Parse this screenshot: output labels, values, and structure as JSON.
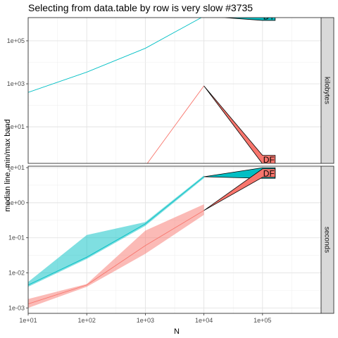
{
  "chart_data": {
    "type": "line",
    "title": "Selecting from data.table by row is very slow #3735",
    "xlabel": "N",
    "ylabel": "median line, min/max band",
    "x_scale": "log10",
    "x_ticks": [
      10,
      100,
      1000,
      10000,
      100000
    ],
    "x_tick_labels": [
      "1e+01",
      "1e+02",
      "1e+03",
      "1e+04",
      "1e+05"
    ],
    "x_range": [
      10,
      1000000
    ],
    "colors": {
      "DT": "#00BFC4",
      "DF": "#F8766D"
    },
    "panels": [
      {
        "strip": "kilobytes",
        "y_scale": "log10",
        "y_ticks": [
          10,
          1000,
          100000
        ],
        "y_tick_labels": [
          "1e+01",
          "1e+03",
          "1e+05"
        ],
        "y_range": [
          0.2,
          1200000
        ],
        "series": [
          {
            "name": "DT",
            "x": [
              10,
              100,
              1000,
              10000,
              100000
            ],
            "median": [
              400,
              3500,
              45000,
              1400000,
              1400000
            ],
            "min": [
              400,
              3500,
              45000,
              1400000,
              700000
            ],
            "max": [
              400,
              3500,
              45000,
              1400000,
              1700000
            ]
          },
          {
            "name": "DF",
            "x": [
              1000,
              10000,
              100000
            ],
            "median": [
              0.15,
              800,
              0.3
            ],
            "min": [
              0.15,
              800,
              0.2
            ],
            "max": [
              0.15,
              800,
              0.4
            ]
          }
        ]
      },
      {
        "strip": "seconds",
        "y_scale": "log10",
        "y_ticks": [
          0.001,
          0.01,
          0.1,
          1,
          10
        ],
        "y_tick_labels": [
          "1e-03",
          "1e-02",
          "1e-01",
          "1e+00",
          "1e+01"
        ],
        "y_range": [
          0.0007,
          11
        ],
        "series": [
          {
            "name": "DT",
            "x": [
              10,
              100,
              1000,
              10000,
              100000
            ],
            "median": [
              0.0045,
              0.028,
              0.25,
              5.5,
              7.0
            ],
            "min": [
              0.004,
              0.025,
              0.22,
              5.0,
              5.0
            ],
            "max": [
              0.0055,
              0.12,
              0.28,
              6.0,
              10.0
            ]
          },
          {
            "name": "DF",
            "x": [
              10,
              100,
              1000,
              10000,
              100000
            ],
            "median": [
              0.0013,
              0.0045,
              0.06,
              0.6,
              7.0
            ],
            "min": [
              0.001,
              0.004,
              0.035,
              0.45,
              5.0
            ],
            "max": [
              0.0018,
              0.0048,
              0.16,
              0.9,
              8.0
            ]
          }
        ]
      }
    ]
  }
}
